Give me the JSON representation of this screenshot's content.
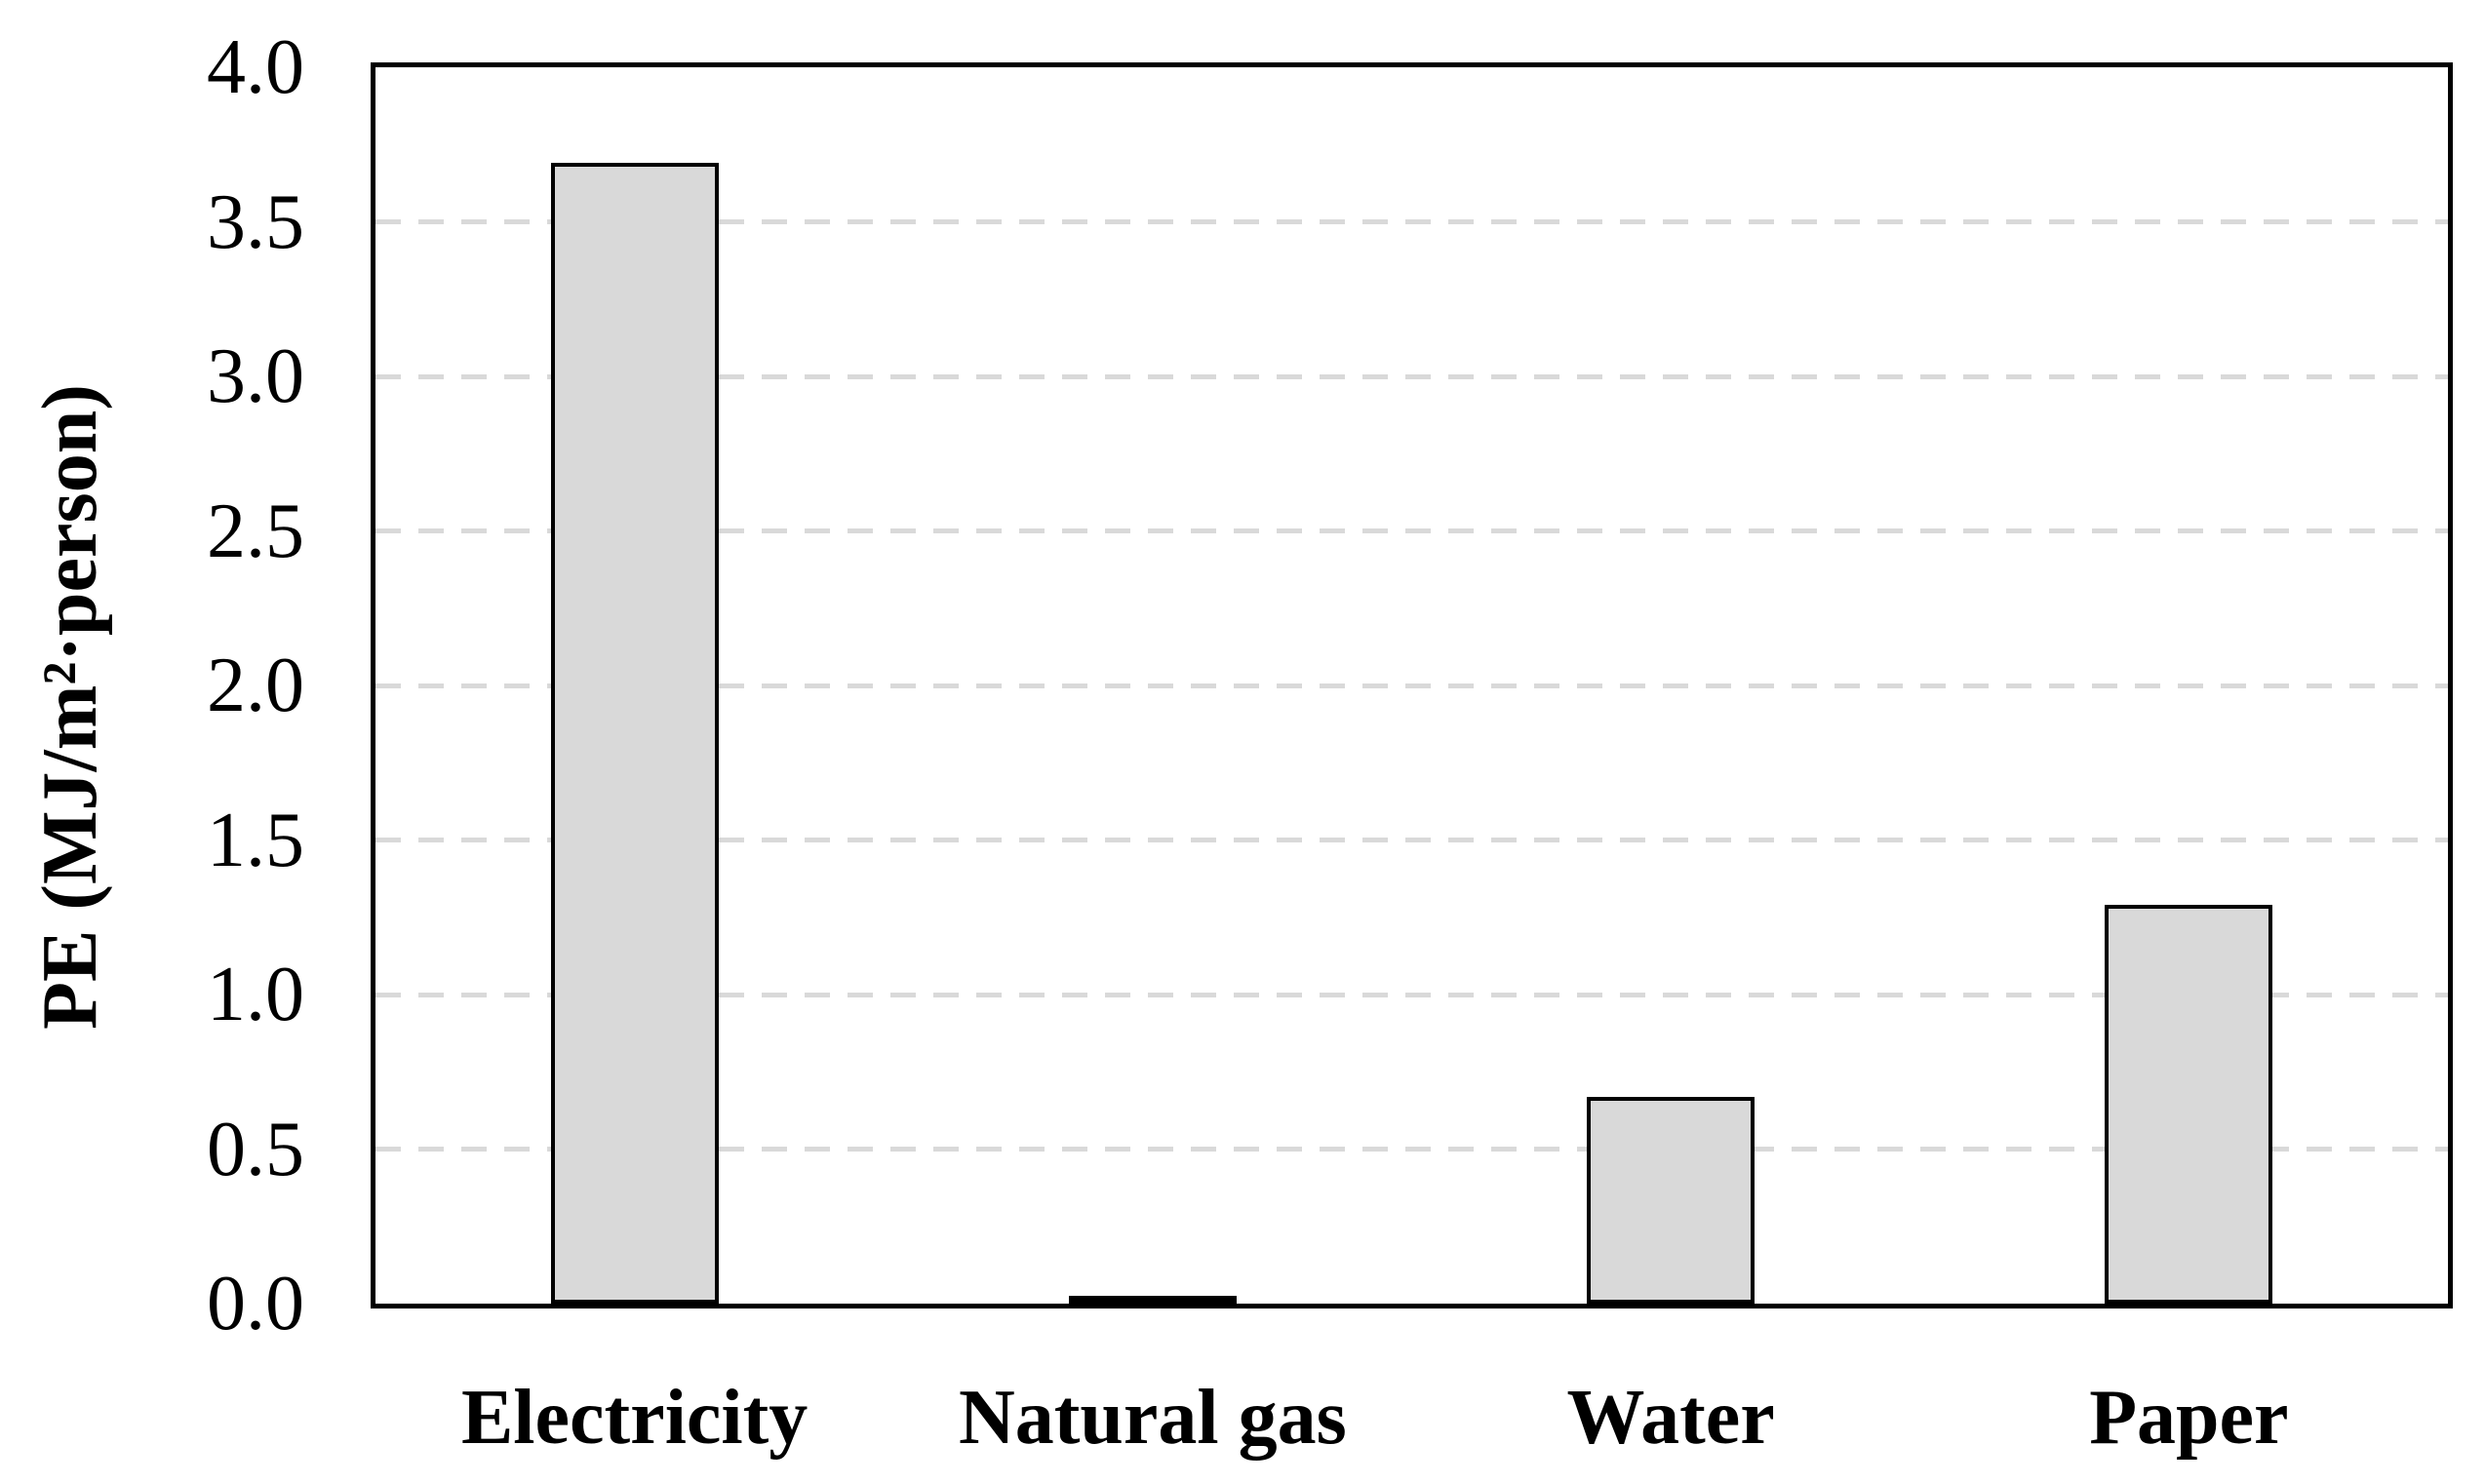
{
  "chart_data": {
    "type": "bar",
    "categories": [
      "Electricity",
      "Natural gas",
      "Water",
      "Paper"
    ],
    "values": [
      3.69,
      0.02,
      0.67,
      1.29
    ],
    "ylabel": "PE (MJ/m²·person)",
    "ylim": [
      0,
      4
    ],
    "ytick_interval": 0.5,
    "ytick_labels": [
      "0.0",
      "0.5",
      "1.0",
      "1.5",
      "2.0",
      "2.5",
      "3.0",
      "3.5",
      "4.0"
    ],
    "grid": "horizontal-dashed",
    "legend": "none",
    "colors": {
      "bar_fill": "#d9d9d9",
      "bar_border": "#000000",
      "gridline": "#d9d9d9",
      "axis_frame": "#000000",
      "text": "#000000"
    }
  }
}
